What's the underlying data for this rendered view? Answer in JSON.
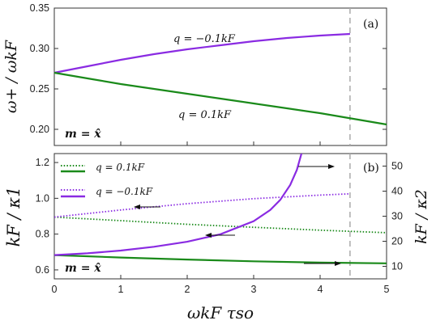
{
  "chart_data": [
    {
      "type": "line",
      "panel_label": "(a)",
      "ylabel": "ω+ / ωkF",
      "xlim": [
        0,
        5
      ],
      "ylim": [
        0.18,
        0.35
      ],
      "yticks": [
        "0.20",
        "0.25",
        "0.30",
        "0.35"
      ],
      "annotation": "m = x̂",
      "vline_x": 4.45,
      "series": [
        {
          "name": "q = −0.1kF",
          "color": "#8a2be2",
          "x": [
            0,
            0.5,
            1,
            1.5,
            2,
            2.5,
            3,
            3.5,
            4,
            4.45
          ],
          "y": [
            0.27,
            0.278,
            0.286,
            0.293,
            0.299,
            0.304,
            0.309,
            0.313,
            0.316,
            0.318
          ]
        },
        {
          "name": "q = 0.1kF",
          "color": "#1a8a1a",
          "x": [
            0,
            0.5,
            1,
            1.5,
            2,
            2.5,
            3,
            3.5,
            4,
            4.5,
            5
          ],
          "y": [
            0.27,
            0.263,
            0.256,
            0.25,
            0.244,
            0.238,
            0.232,
            0.226,
            0.22,
            0.213,
            0.206
          ]
        }
      ]
    },
    {
      "type": "line",
      "panel_label": "(b)",
      "xlabel": "ωkF τso",
      "ylabel_left": "kF / κ1",
      "ylabel_right": "kF / κ2",
      "xlim": [
        0,
        5
      ],
      "xticks": [
        "0",
        "1",
        "2",
        "3",
        "4",
        "5"
      ],
      "ylim_left": [
        0.55,
        1.25
      ],
      "yticks_left": [
        "0.6",
        "0.8",
        "1.0",
        "1.2"
      ],
      "ylim_right": [
        5,
        55
      ],
      "yticks_right": [
        "10",
        "20",
        "30",
        "40",
        "50"
      ],
      "annotation": "m = x̂",
      "vline_x": 4.45,
      "legend": [
        {
          "label": "q = 0.1kF",
          "color": "#1a8a1a"
        },
        {
          "label": "q = −0.1kF",
          "color": "#8a2be2"
        }
      ],
      "series": [
        {
          "name": "q = 0.1kF",
          "axis": "left",
          "style": "dotted",
          "color": "#1a8a1a",
          "x": [
            0,
            1,
            2,
            3,
            4,
            5
          ],
          "y": [
            0.895,
            0.875,
            0.855,
            0.838,
            0.822,
            0.808
          ]
        },
        {
          "name": "q = −0.1kF",
          "axis": "left",
          "style": "dotted",
          "color": "#8a2be2",
          "x": [
            0,
            1,
            2,
            3,
            4,
            4.45
          ],
          "y": [
            0.895,
            0.935,
            0.97,
            0.998,
            1.018,
            1.025
          ]
        },
        {
          "name": "q = 0.1kF",
          "axis": "right",
          "style": "solid",
          "color": "#1a8a1a",
          "x": [
            0,
            1,
            2,
            3,
            4,
            5
          ],
          "y": [
            14.5,
            13.5,
            12.7,
            12.0,
            11.5,
            11.2
          ]
        },
        {
          "name": "q = −0.1kF",
          "axis": "right",
          "style": "solid",
          "color": "#8a2be2",
          "x": [
            0,
            0.5,
            1,
            1.5,
            2,
            2.5,
            3,
            3.25,
            3.4,
            3.55,
            3.65,
            3.72
          ],
          "y": [
            14.5,
            15.2,
            16.3,
            17.8,
            19.8,
            22.8,
            28.0,
            32.5,
            36.5,
            42.5,
            48.5,
            55
          ]
        }
      ]
    }
  ]
}
